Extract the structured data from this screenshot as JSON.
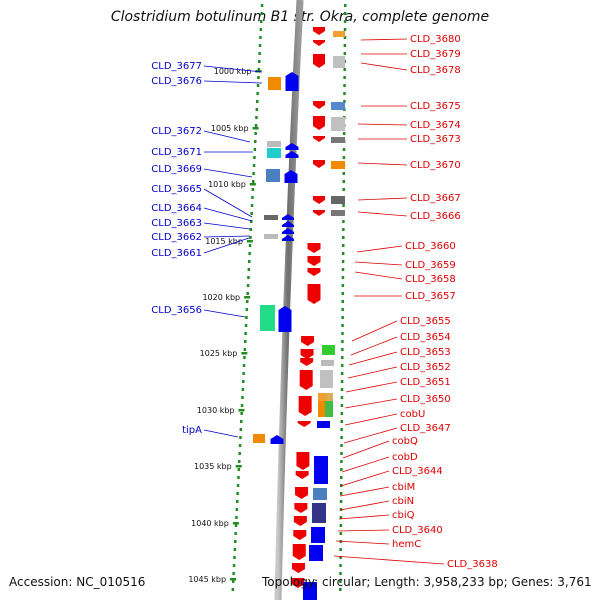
{
  "title": "Clostridium botulinum B1 str. Okra, complete genome",
  "footer": {
    "accession": "Accession: NC_010516",
    "topology": "Topology: circular; Length: 3,958,233 bp; Genes: 3,761"
  },
  "colors": {
    "left_label": "#0000cc",
    "right_label": "#dd0000",
    "backbone": "#808080",
    "dots": "#228b22"
  },
  "ticks": [
    "1000 kbp",
    "1005 kbp",
    "1010 kbp",
    "1015 kbp",
    "1020 kbp",
    "1025 kbp",
    "1030 kbp",
    "1035 kbp",
    "1040 kbp",
    "1045 kbp"
  ],
  "left_labels": [
    "CLD_3677",
    "CLD_3676",
    "CLD_3672",
    "CLD_3671",
    "CLD_3669",
    "CLD_3665",
    "CLD_3664",
    "CLD_3663",
    "CLD_3662",
    "CLD_3661",
    "CLD_3656",
    "tipA"
  ],
  "right_labels": [
    "CLD_3680",
    "CLD_3679",
    "CLD_3678",
    "CLD_3675",
    "CLD_3674",
    "CLD_3673",
    "CLD_3670",
    "CLD_3667",
    "CLD_3666",
    "CLD_3660",
    "CLD_3659",
    "CLD_3658",
    "CLD_3657",
    "CLD_3655",
    "CLD_3654",
    "CLD_3653",
    "CLD_3652",
    "CLD_3651",
    "CLD_3650",
    "cobU",
    "CLD_3647",
    "cobQ",
    "cobD",
    "CLD_3644",
    "cbiM",
    "cbiN",
    "cbiQ",
    "CLD_3640",
    "hemC",
    "CLD_3638"
  ]
}
